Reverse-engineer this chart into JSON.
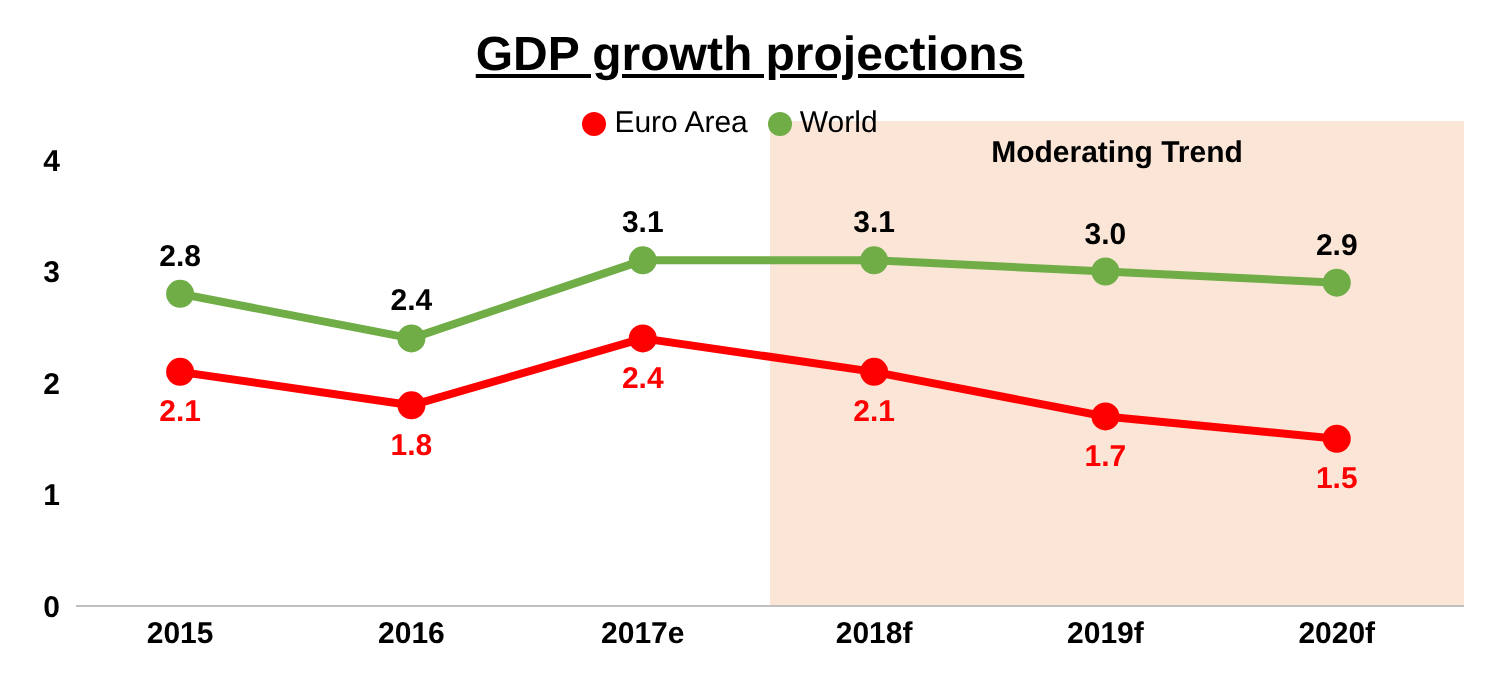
{
  "chart_data": {
    "type": "line",
    "title": "GDP growth projections",
    "categories": [
      "2015",
      "2016",
      "2017e",
      "2018f",
      "2019f",
      "2020f"
    ],
    "series": [
      {
        "name": "Euro Area",
        "color": "#ff0000",
        "values": [
          2.1,
          1.8,
          2.4,
          2.1,
          1.7,
          1.5
        ],
        "value_labels": [
          "2.1",
          "1.8",
          "2.4",
          "2.1",
          "1.7",
          "1.5"
        ]
      },
      {
        "name": "World",
        "color": "#70ad47",
        "values": [
          2.8,
          2.4,
          3.1,
          3.1,
          3.0,
          2.9
        ],
        "value_labels": [
          "2.8",
          "2.4",
          "3.1",
          "3.1",
          "3.0",
          "2.9"
        ]
      }
    ],
    "ylim": [
      0,
      4
    ],
    "yticks": [
      0,
      1,
      2,
      3,
      4
    ],
    "legend": "top",
    "marker": "circle",
    "line_style": "solid",
    "bands": [
      {
        "axis": "x",
        "from": "2018f",
        "to": "2020f",
        "label": "Moderating Trend",
        "color": "#fbe5d6"
      }
    ]
  }
}
